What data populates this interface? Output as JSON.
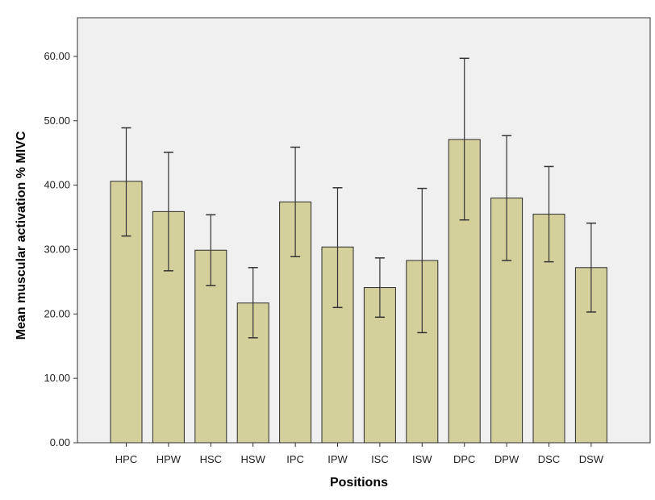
{
  "chart_data": {
    "type": "bar",
    "xlabel": "Positions",
    "ylabel": "Mean muscular activation % MIVC",
    "categories": [
      "HPC",
      "HPW",
      "HSC",
      "HSW",
      "IPC",
      "IPW",
      "ISC",
      "ISW",
      "DPC",
      "DPW",
      "DSC",
      "DSW"
    ],
    "values": [
      40.6,
      35.9,
      29.9,
      21.7,
      37.4,
      30.4,
      24.1,
      28.3,
      47.1,
      38.0,
      35.5,
      27.2
    ],
    "error_low": [
      32.1,
      26.7,
      24.4,
      16.3,
      28.9,
      21.0,
      19.5,
      17.1,
      34.6,
      28.3,
      28.1,
      20.3
    ],
    "error_high": [
      48.9,
      45.1,
      35.4,
      27.2,
      45.9,
      39.6,
      28.7,
      39.5,
      59.7,
      47.7,
      42.9,
      34.1
    ],
    "ylim": [
      0,
      66
    ],
    "yticks": [
      0,
      10,
      20,
      30,
      40,
      50,
      60
    ],
    "ytick_labels": [
      "0.00",
      "10.00",
      "20.00",
      "30.00",
      "40.00",
      "50.00",
      "60.00"
    ],
    "grid": false,
    "colors": {
      "bar_fill": "#d4d09c",
      "bar_stroke": "#2b2b2b",
      "plot_background": "#f0f0f0",
      "error_bar": "#333333"
    }
  }
}
